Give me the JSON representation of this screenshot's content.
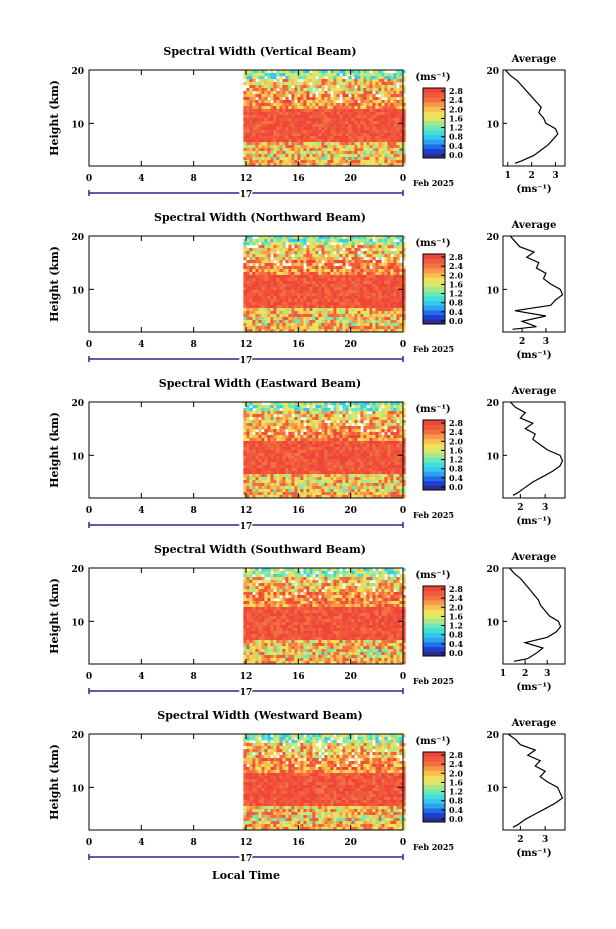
{
  "figure": {
    "x_axis_label": "Local Time",
    "date_label": "Feb 2025",
    "day_label": "17"
  },
  "colors": {
    "scale": [
      "#2e2e8c",
      "#1f3fd0",
      "#1f6fe8",
      "#2fa0f0",
      "#35c8f0",
      "#40e0d8",
      "#6fe8b8",
      "#a8e88a",
      "#d8e86a",
      "#f4e05a",
      "#f8c050",
      "#f89848",
      "#f47040",
      "#f05a3c",
      "#f0463a"
    ]
  },
  "chart_data": [
    {
      "type": "heatmap",
      "title": "Spectral Width (Vertical Beam)",
      "xlabel": "",
      "ylabel": "Height (km)",
      "xlim": [
        0,
        24
      ],
      "ylim": [
        2,
        20
      ],
      "x_ticks": [
        "0",
        "4",
        "8",
        "12",
        "16",
        "20",
        "0"
      ],
      "y_ticks": [
        "10",
        "20"
      ],
      "data_start_hour": 11.8,
      "colorbar": {
        "unit": "(ms⁻¹)",
        "ticks": [
          "2.8",
          "2.4",
          "2.0",
          "1.6",
          "1.2",
          "0.8",
          "0.4",
          "0.0"
        ]
      },
      "profile": {
        "title": "Average",
        "xlabel": "(ms⁻¹)",
        "xlim": [
          0.8,
          3.4
        ],
        "x_ticks": [
          "1",
          "2",
          "3"
        ],
        "heights": [
          2.5,
          3,
          4,
          5,
          6,
          7,
          8,
          9,
          10,
          11,
          12,
          13,
          14,
          15,
          16,
          17,
          18,
          19,
          20
        ],
        "values": [
          1.3,
          1.6,
          2.1,
          2.4,
          2.7,
          2.9,
          3.1,
          3.0,
          2.6,
          2.5,
          2.3,
          2.4,
          2.2,
          2.0,
          1.8,
          1.6,
          1.4,
          1.1,
          0.9
        ]
      }
    },
    {
      "type": "heatmap",
      "title": "Spectral Width (Northward Beam)",
      "xlabel": "",
      "ylabel": "Height (km)",
      "xlim": [
        0,
        24
      ],
      "ylim": [
        2,
        20
      ],
      "x_ticks": [
        "0",
        "4",
        "8",
        "12",
        "16",
        "20",
        "0"
      ],
      "y_ticks": [
        "10",
        "20"
      ],
      "data_start_hour": 11.8,
      "colorbar": {
        "unit": "(ms⁻¹)",
        "ticks": [
          "2.8",
          "2.4",
          "2.0",
          "1.6",
          "1.2",
          "0.8",
          "0.4",
          "0.0"
        ]
      },
      "profile": {
        "title": "Average",
        "xlabel": "(ms⁻¹)",
        "xlim": [
          1.2,
          3.8
        ],
        "x_ticks": [
          "2",
          "3"
        ],
        "heights": [
          2.5,
          3,
          4,
          5,
          6,
          7,
          8,
          9,
          10,
          11,
          12,
          13,
          14,
          15,
          16,
          17,
          18,
          19,
          20
        ],
        "values": [
          1.6,
          2.6,
          2.0,
          3.0,
          1.7,
          3.2,
          3.4,
          3.7,
          3.6,
          3.2,
          2.9,
          3.0,
          2.6,
          2.7,
          2.2,
          2.5,
          1.9,
          1.7,
          1.5
        ]
      }
    },
    {
      "type": "heatmap",
      "title": "Spectral Width (Eastward Beam)",
      "xlabel": "",
      "ylabel": "Height (km)",
      "xlim": [
        0,
        24
      ],
      "ylim": [
        2,
        20
      ],
      "x_ticks": [
        "0",
        "4",
        "8",
        "12",
        "16",
        "20",
        "0"
      ],
      "y_ticks": [
        "10",
        "20"
      ],
      "data_start_hour": 11.8,
      "colorbar": {
        "unit": "(ms⁻¹)",
        "ticks": [
          "2.8",
          "2.4",
          "2.0",
          "1.6",
          "1.2",
          "0.8",
          "0.4",
          "0.0"
        ]
      },
      "profile": {
        "title": "Average",
        "xlabel": "(ms⁻¹)",
        "xlim": [
          1.3,
          3.8
        ],
        "x_ticks": [
          "2",
          "3"
        ],
        "heights": [
          2.5,
          3,
          4,
          5,
          6,
          7,
          8,
          9,
          10,
          11,
          12,
          13,
          14,
          15,
          16,
          17,
          18,
          19,
          20
        ],
        "values": [
          1.7,
          1.9,
          2.2,
          2.5,
          2.9,
          3.3,
          3.6,
          3.7,
          3.6,
          3.1,
          2.8,
          2.5,
          2.6,
          2.2,
          2.5,
          2.0,
          2.2,
          1.8,
          1.6
        ]
      }
    },
    {
      "type": "heatmap",
      "title": "Spectral Width (Southward Beam)",
      "xlabel": "",
      "ylabel": "Height (km)",
      "xlim": [
        0,
        24
      ],
      "ylim": [
        2,
        20
      ],
      "x_ticks": [
        "0",
        "4",
        "8",
        "12",
        "16",
        "20",
        "0"
      ],
      "y_ticks": [
        "10",
        "20"
      ],
      "data_start_hour": 11.8,
      "colorbar": {
        "unit": "(ms⁻¹)",
        "ticks": [
          "2.8",
          "2.4",
          "2.0",
          "1.6",
          "1.2",
          "0.8",
          "0.4",
          "0.0"
        ]
      },
      "profile": {
        "title": "Average",
        "xlabel": "(ms⁻¹)",
        "xlim": [
          1.0,
          3.8
        ],
        "x_ticks": [
          "1",
          "2",
          "3"
        ],
        "heights": [
          2.5,
          3,
          4,
          5,
          6,
          7,
          8,
          9,
          10,
          11,
          12,
          13,
          14,
          15,
          16,
          17,
          18,
          19,
          20
        ],
        "values": [
          1.5,
          2.1,
          2.5,
          2.8,
          2.0,
          3.0,
          3.4,
          3.6,
          3.5,
          3.1,
          2.9,
          2.7,
          2.6,
          2.4,
          2.2,
          2.0,
          1.8,
          1.5,
          1.3
        ]
      }
    },
    {
      "type": "heatmap",
      "title": "Spectral Width (Westward Beam)",
      "xlabel": "Local Time",
      "ylabel": "Height (km)",
      "xlim": [
        0,
        24
      ],
      "ylim": [
        2,
        20
      ],
      "x_ticks": [
        "0",
        "4",
        "8",
        "12",
        "16",
        "20",
        "0"
      ],
      "y_ticks": [
        "10",
        "20"
      ],
      "data_start_hour": 11.8,
      "colorbar": {
        "unit": "(ms⁻¹)",
        "ticks": [
          "2.8",
          "2.4",
          "2.0",
          "1.6",
          "1.2",
          "0.8",
          "0.4",
          "0.0"
        ]
      },
      "profile": {
        "title": "Average",
        "xlabel": "(ms⁻¹)",
        "xlim": [
          1.3,
          3.8
        ],
        "x_ticks": [
          "2",
          "3"
        ],
        "heights": [
          2.5,
          3,
          4,
          5,
          6,
          7,
          8,
          9,
          10,
          11,
          12,
          13,
          14,
          15,
          16,
          17,
          18,
          19,
          20
        ],
        "values": [
          1.7,
          1.9,
          2.2,
          2.6,
          3.0,
          3.4,
          3.7,
          3.6,
          3.5,
          3.1,
          2.8,
          3.0,
          2.6,
          2.8,
          2.3,
          2.6,
          2.0,
          1.8,
          1.5
        ]
      }
    }
  ]
}
